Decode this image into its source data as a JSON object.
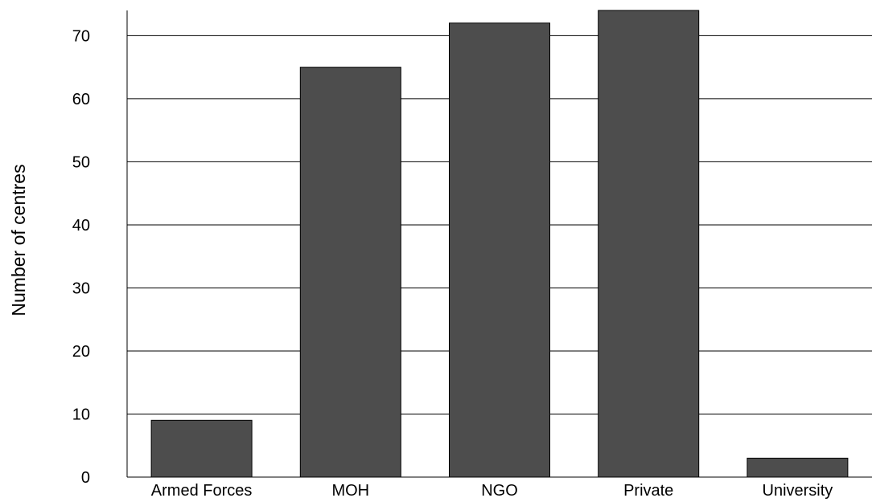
{
  "chart_data": {
    "type": "bar",
    "title": "",
    "xlabel": "",
    "ylabel": "Number of centres",
    "categories": [
      "Armed Forces",
      "MOH",
      "NGO",
      "Private",
      "University"
    ],
    "values": [
      9,
      65,
      72,
      74,
      3
    ],
    "ylim": [
      0,
      74
    ],
    "yticks": [
      0,
      10,
      20,
      30,
      40,
      50,
      60,
      70
    ],
    "ytick_labels": [
      "0",
      "10",
      "20",
      "30",
      "40",
      "50",
      "60",
      "70"
    ],
    "grid": true,
    "legend": "none",
    "colors": {
      "bar": "#4d4d4d",
      "grid": "#000000",
      "axis": "#000000"
    }
  }
}
